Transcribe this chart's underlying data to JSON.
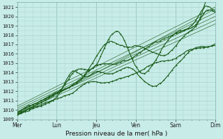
{
  "xlabel": "Pression niveau de la mer( hPa )",
  "ylim": [
    1009,
    1021.5
  ],
  "yticks": [
    1009,
    1010,
    1011,
    1012,
    1013,
    1014,
    1015,
    1016,
    1017,
    1018,
    1019,
    1020,
    1021
  ],
  "xtick_labels": [
    "Mer",
    "Lun",
    "Jeu",
    "Ven",
    "Sam",
    "Dim"
  ],
  "xtick_positions": [
    0,
    1,
    2,
    3,
    4,
    5
  ],
  "bg_color": "#c8ece8",
  "grid_color": "#aad4d0",
  "line_color": "#1a5c1a",
  "xlim": [
    0,
    5
  ]
}
